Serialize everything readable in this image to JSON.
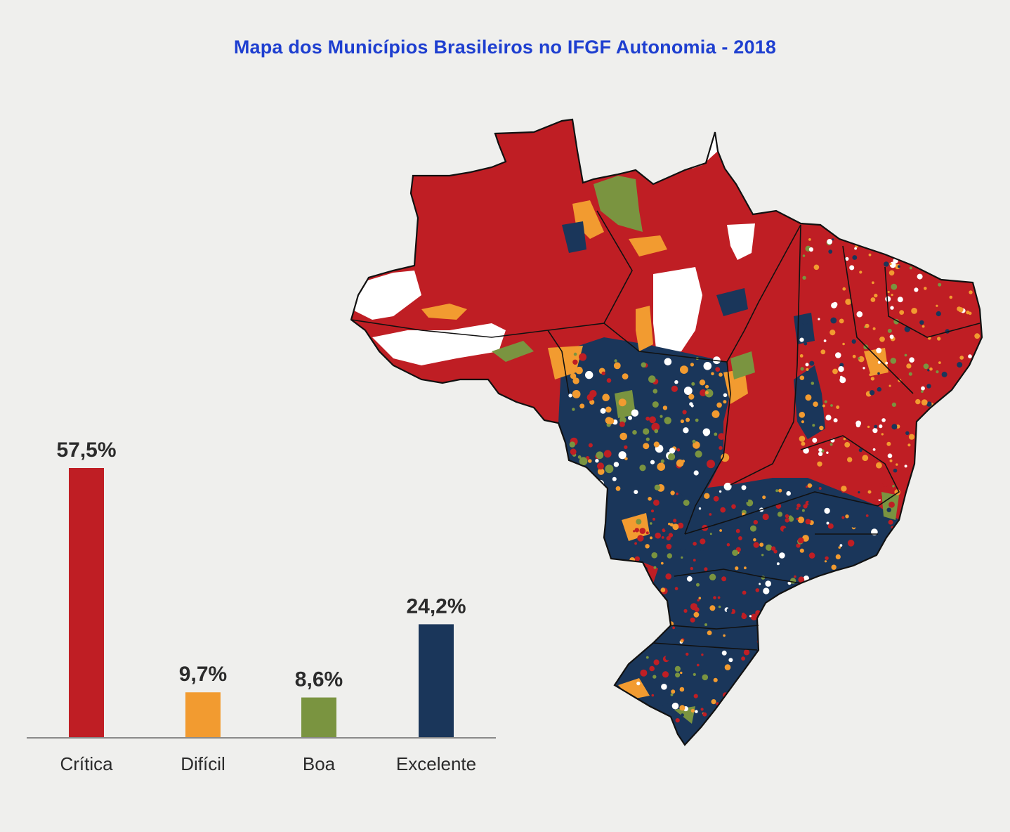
{
  "title": "Mapa dos Municípios Brasileiros no IFGF Autonomia - 2018",
  "colors": {
    "critica": "#bf1e24",
    "dificil": "#f29b30",
    "boa": "#7a9440",
    "excelente": "#1a365a",
    "background": "#efefed",
    "title": "#1e3fd0",
    "text": "#2b2b2b"
  },
  "map": {
    "name": "brazil-municipalities-choropleth",
    "legend_ref": "categories colored by IFGF Autonomia class"
  },
  "chart_data": {
    "type": "bar",
    "title": "",
    "xlabel": "",
    "ylabel": "",
    "categories": [
      "Crítica",
      "Difícil",
      "Boa",
      "Excelente"
    ],
    "values": [
      57.5,
      9.7,
      8.6,
      24.2
    ],
    "value_labels": [
      "57,5%",
      "9,7%",
      "8,6%",
      "24,2%"
    ],
    "bar_colors": [
      "#bf1e24",
      "#f29b30",
      "#7a9440",
      "#1a365a"
    ],
    "ylim": [
      0,
      60
    ],
    "grid": false,
    "legend": "none"
  }
}
